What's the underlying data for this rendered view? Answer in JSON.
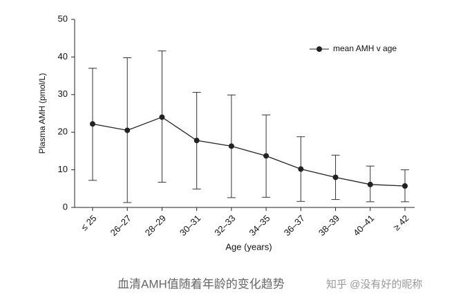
{
  "chart_data": {
    "type": "line",
    "x_label": "Age (years)",
    "y_label": "Plasma AMH (pmol/L)",
    "categories": [
      "≤ 25",
      "26–27",
      "28–29",
      "30–31",
      "32–33",
      "34–35",
      "36–37",
      "38–39",
      "40–41",
      "≥ 42"
    ],
    "series": [
      {
        "name": "mean AMH v age",
        "color": "#222222",
        "values": [
          22.2,
          20.5,
          24,
          17.8,
          16.3,
          13.7,
          10.2,
          8,
          6.1,
          5.7
        ],
        "lower": [
          7.2,
          1.3,
          6.7,
          4.9,
          2.6,
          2.7,
          1.6,
          2.1,
          1.5,
          1.5
        ],
        "upper": [
          37,
          39.8,
          41.6,
          30.6,
          29.9,
          24.6,
          18.8,
          13.9,
          11,
          10
        ]
      }
    ],
    "ylim": [
      0,
      50
    ],
    "yticks": [
      0,
      10,
      20,
      30,
      40,
      50
    ],
    "grid": false,
    "legend": "upper-right"
  },
  "caption": "血清AMH值随着年龄的变化趋势",
  "watermark": "知乎 @没有好的昵称"
}
